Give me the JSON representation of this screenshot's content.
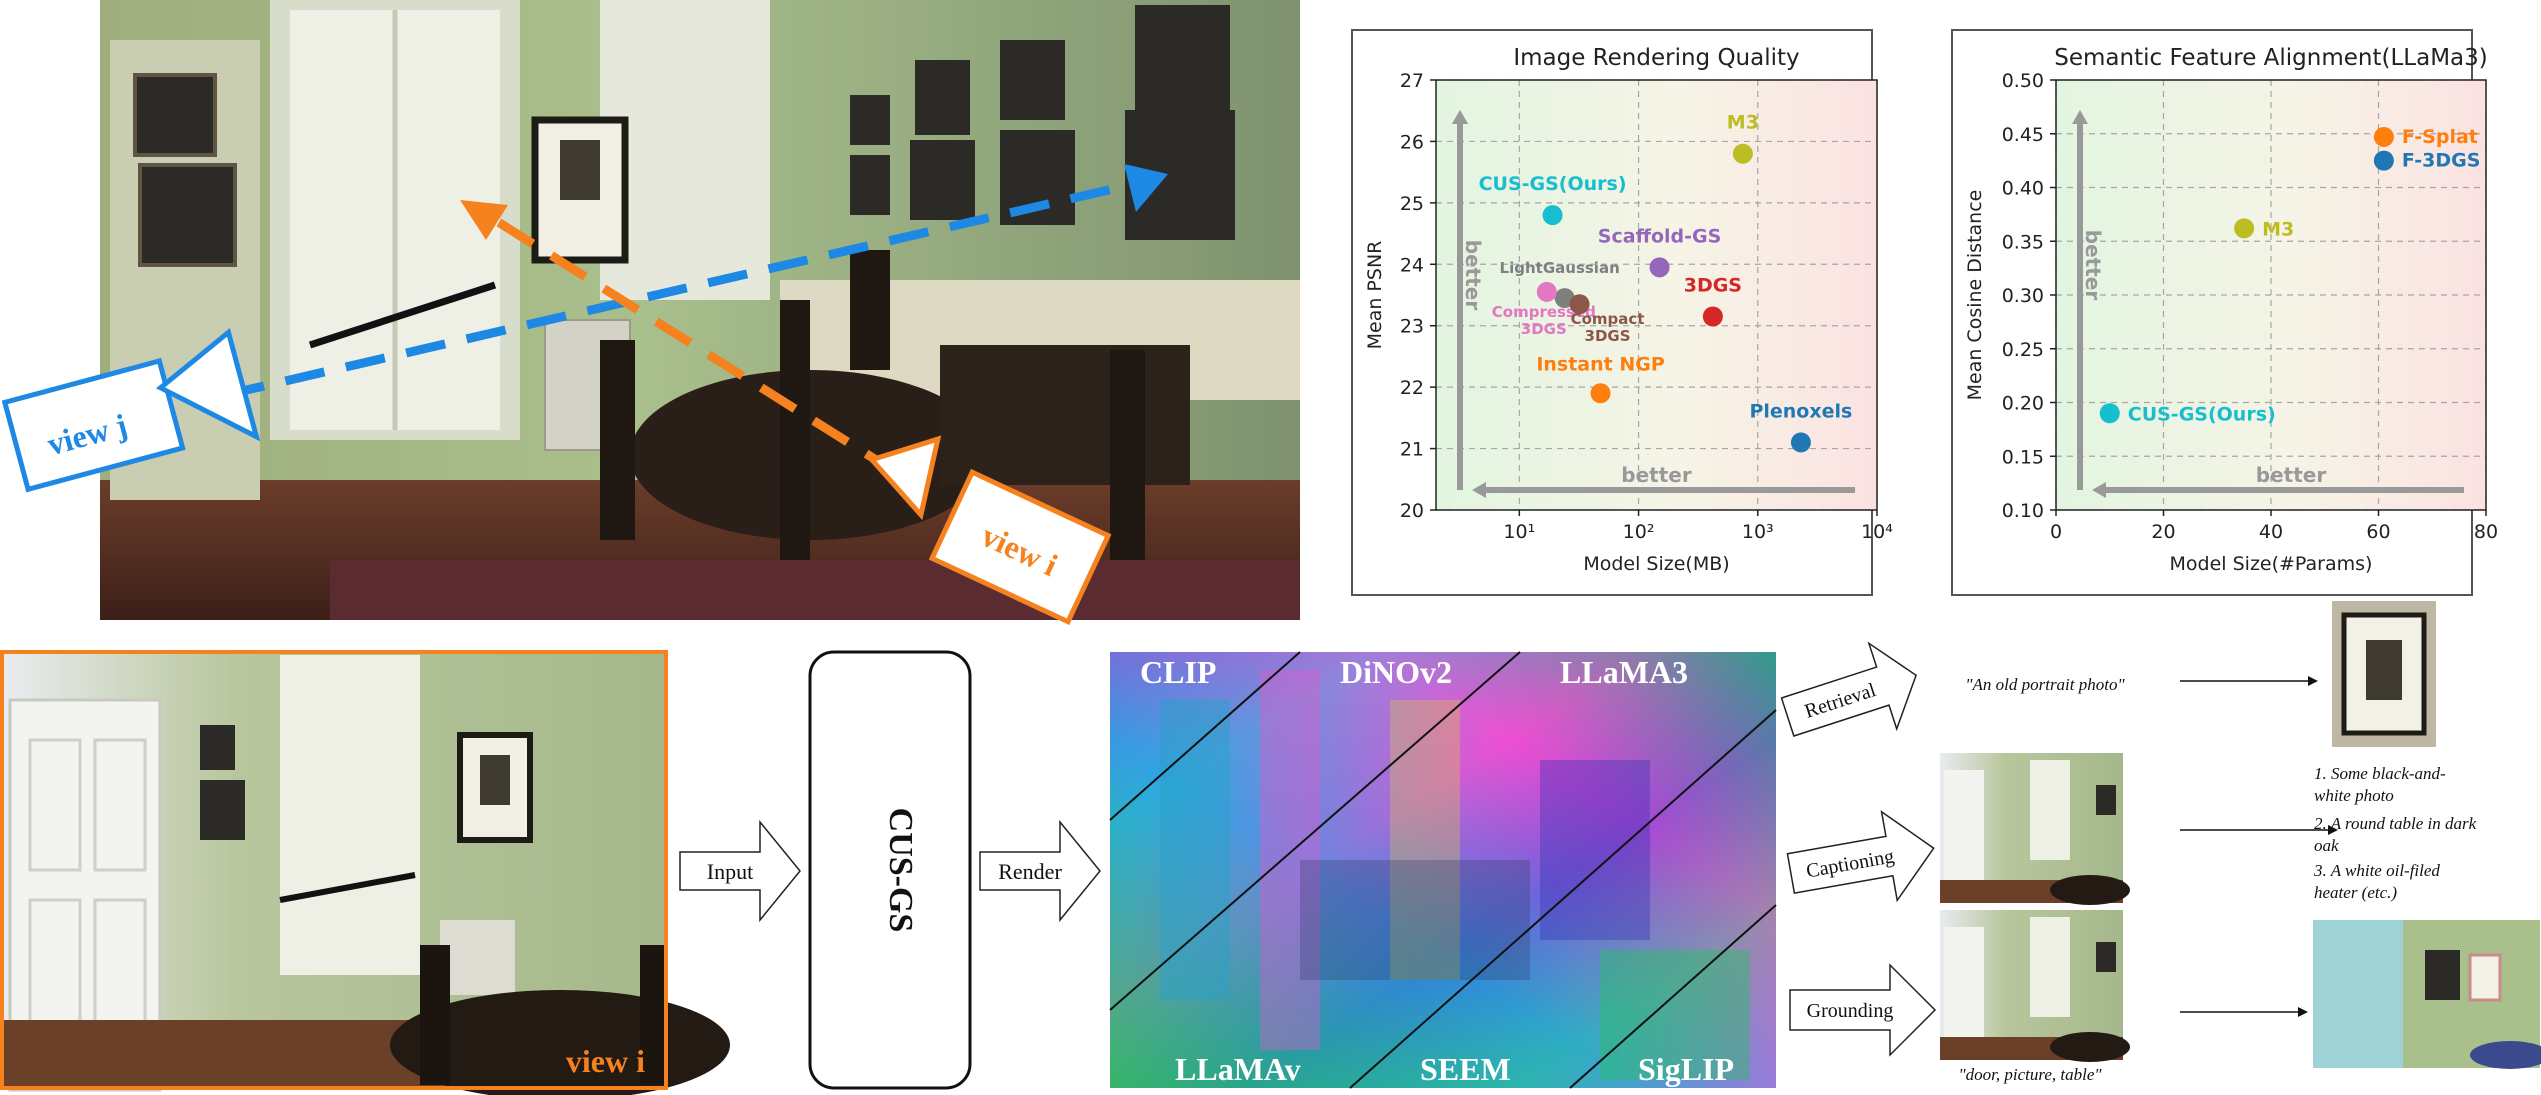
{
  "colors": {
    "view_i": "#f5821f",
    "view_j": "#1e88e5",
    "green_bg": "#e3f5e3",
    "red_bg": "#fbe3e3"
  },
  "views": {
    "view_j_label": "view j",
    "view_i_label": "view i",
    "bottom_view_label": "view i"
  },
  "pipeline": {
    "input_label": "Input",
    "model_label": "CUS-GS",
    "render_label": "Render",
    "features": [
      "CLIP",
      "DiNOv2",
      "LLaMA3",
      "LLaMAv",
      "SEEM",
      "SigLIP"
    ]
  },
  "tasks": {
    "retrieval": {
      "label": "Retrieval",
      "query": "\"An old portrait photo\""
    },
    "captioning": {
      "label": "Captioning",
      "captions": [
        "1. Some black-and-",
        "white photo",
        "2. A round table in dark",
        "oak",
        "3. A white oil-filed",
        "heater (etc.)"
      ]
    },
    "grounding": {
      "label": "Grounding",
      "query": "\"door, picture, table\""
    }
  },
  "chart_data": [
    {
      "type": "scatter",
      "title": "Image Rendering Quality",
      "xlabel": "Model Size(MB)",
      "ylabel": "Mean PSNR",
      "xscale": "log",
      "xlim": [
        2,
        10000
      ],
      "ylim": [
        20,
        27
      ],
      "xticks": [
        10,
        100,
        1000,
        10000
      ],
      "xtick_labels": [
        "10¹",
        "10²",
        "10³",
        "10⁴"
      ],
      "yticks": [
        20,
        21,
        22,
        23,
        24,
        25,
        26,
        27
      ],
      "grid": true,
      "better_x": "better",
      "better_y": "better",
      "points": [
        {
          "name": "M3",
          "x": 750,
          "y": 25.8,
          "color": "#bcbd22",
          "label": [
            "M3"
          ]
        },
        {
          "name": "CUS-GS(Ours)",
          "x": 19,
          "y": 24.8,
          "color": "#17becf",
          "label": [
            "CUS-GS(Ours)"
          ]
        },
        {
          "name": "Scaffold-GS",
          "x": 150,
          "y": 23.95,
          "color": "#9467bd",
          "label": [
            "Scaffold-GS"
          ]
        },
        {
          "name": "LightGaussian",
          "x": 24,
          "y": 23.45,
          "color": "#7f7f7f",
          "label": [
            "LightGaussian"
          ]
        },
        {
          "name": "Compressed 3DGS",
          "x": 17,
          "y": 23.55,
          "color": "#e377c2",
          "label": [
            "Compressed",
            "3DGS"
          ]
        },
        {
          "name": "Compact 3DGS",
          "x": 32,
          "y": 23.35,
          "color": "#8c564b",
          "label": [
            "Compact",
            "3DGS"
          ]
        },
        {
          "name": "3DGS",
          "x": 420,
          "y": 23.15,
          "color": "#d62728",
          "label": [
            "3DGS"
          ]
        },
        {
          "name": "Instant NGP",
          "x": 48,
          "y": 21.9,
          "color": "#ff7f0e",
          "label": [
            "Instant NGP"
          ]
        },
        {
          "name": "Plenoxels",
          "x": 2300,
          "y": 21.1,
          "color": "#1f77b4",
          "label": [
            "Plenoxels"
          ]
        }
      ]
    },
    {
      "type": "scatter",
      "title": "Semantic Feature Alignment(LLaMa3)",
      "xlabel": "Model Size(#Params)",
      "ylabel": "Mean Cosine Distance",
      "xlim": [
        0,
        80
      ],
      "ylim": [
        0.1,
        0.5
      ],
      "xticks": [
        0,
        20,
        40,
        60,
        80
      ],
      "yticks": [
        0.1,
        0.15,
        0.2,
        0.25,
        0.3,
        0.35,
        0.4,
        0.45,
        0.5
      ],
      "ytick_labels": [
        "0.10",
        "0.15",
        "0.20",
        "0.25",
        "0.30",
        "0.35",
        "0.40",
        "0.45",
        "0.50"
      ],
      "grid": true,
      "better_x": "better",
      "better_y": "better",
      "points": [
        {
          "name": "F-Splat",
          "x": 61,
          "y": 0.447,
          "color": "#ff7f0e",
          "label": [
            "F-Splat"
          ]
        },
        {
          "name": "F-3DGS",
          "x": 61,
          "y": 0.425,
          "color": "#1f77b4",
          "label": [
            "F-3DGS"
          ]
        },
        {
          "name": "M3",
          "x": 35,
          "y": 0.362,
          "color": "#bcbd22",
          "label": [
            "M3"
          ]
        },
        {
          "name": "CUS-GS(Ours)",
          "x": 10,
          "y": 0.19,
          "color": "#17becf",
          "label": [
            "CUS-GS(Ours)"
          ]
        }
      ]
    }
  ]
}
